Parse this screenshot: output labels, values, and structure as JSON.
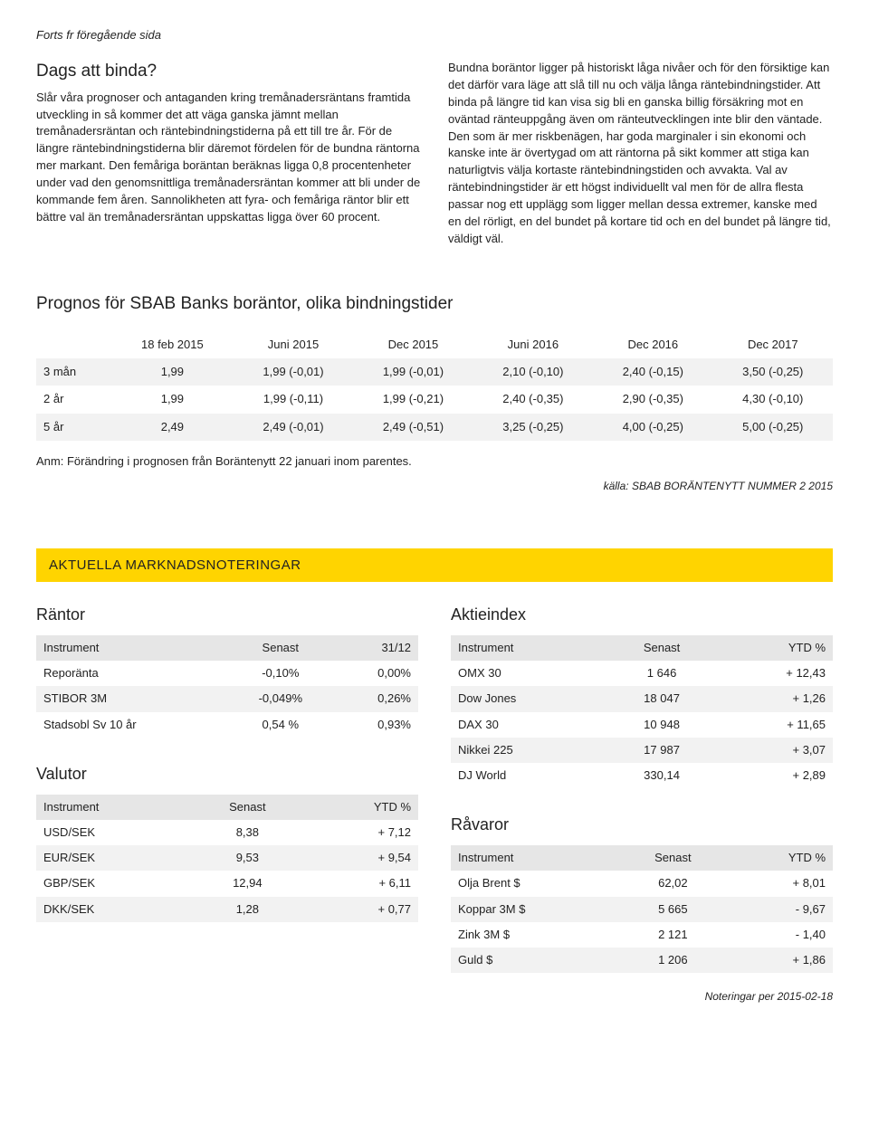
{
  "cont_note": "Forts fr föregående sida",
  "left": {
    "heading": "Dags att binda?",
    "text": "Slår våra prognoser och antaganden kring tremånadersräntans framtida utveckling in så kommer det att väga ganska jämnt mellan tremånadersräntan och räntebindningstiderna på ett till tre år. För de längre räntebindningstiderna blir däremot fördelen för de bundna räntorna mer markant. Den femåriga boräntan beräknas ligga 0,8 procentenheter under vad den genomsnittliga tremånadersräntan kommer att bli under de kommande fem åren. Sannolikheten att fyra- och femåriga räntor blir ett bättre val än tremånadersräntan uppskattas ligga över 60 procent."
  },
  "right": {
    "text": "Bundna boräntor ligger på historiskt låga nivåer och för den försiktige kan det därför vara läge att slå till nu och välja långa räntebindningstider. Att binda på längre tid kan visa sig bli en ganska billig försäkring mot en oväntad ränteuppgång även om ränteutvecklingen inte blir den väntade. Den som är mer riskbenägen, har goda marginaler i sin ekonomi och kanske inte är övertygad om att räntorna på sikt kommer att stiga kan naturligtvis välja kortaste räntebindningstiden och avvakta. Val av räntebindningstider är ett högst individuellt val men för de allra flesta passar nog ett upplägg som ligger mellan dessa extremer, kanske med en del rörligt, en del bundet på kortare tid och en del bundet på längre tid, väldigt väl."
  },
  "forecast": {
    "heading": "Prognos för SBAB Banks boräntor, olika bindningstider",
    "columns": [
      "",
      "18 feb 2015",
      "Juni 2015",
      "Dec 2015",
      "Juni 2016",
      "Dec 2016",
      "Dec 2017"
    ],
    "rows": [
      [
        "3 mån",
        "1,99",
        "1,99 (-0,01)",
        "1,99 (-0,01)",
        "2,10 (-0,10)",
        "2,40 (-0,15)",
        "3,50 (-0,25)"
      ],
      [
        "2 år",
        "1,99",
        "1,99 (-0,11)",
        "1,99 (-0,21)",
        "2,40 (-0,35)",
        "2,90 (-0,35)",
        "4,30 (-0,10)"
      ],
      [
        "5 år",
        "2,49",
        "2,49 (-0,01)",
        "2,49 (-0,51)",
        "3,25 (-0,25)",
        "4,00 (-0,25)",
        "5,00 (-0,25)"
      ]
    ],
    "note": "Anm: Förändring i prognosen från Boräntenytt 22 januari inom parentes.",
    "source": "källa: SBAB BORÄNTENYTT  NUMMER 2 2015"
  },
  "banner": "AKTUELLA MARKNADSNOTERINGAR",
  "rates": {
    "heading": "Räntor",
    "columns": [
      "Instrument",
      "Senast",
      "31/12"
    ],
    "rows": [
      [
        "Reporänta",
        "-0,10%",
        "0,00%"
      ],
      [
        "STIBOR 3M",
        "-0,049%",
        "0,26%"
      ],
      [
        "Stadsobl Sv 10 år",
        "0,54 %",
        "0,93%"
      ]
    ]
  },
  "fx": {
    "heading": "Valutor",
    "columns": [
      "Instrument",
      "Senast",
      "YTD %"
    ],
    "rows": [
      [
        "USD/SEK",
        "8,38",
        "+ 7,12"
      ],
      [
        "EUR/SEK",
        "9,53",
        "+ 9,54"
      ],
      [
        "GBP/SEK",
        "12,94",
        "+ 6,11"
      ],
      [
        "DKK/SEK",
        "1,28",
        "+ 0,77"
      ]
    ]
  },
  "equity": {
    "heading": "Aktieindex",
    "columns": [
      "Instrument",
      "Senast",
      "YTD %"
    ],
    "rows": [
      [
        "OMX 30",
        "1 646",
        "+ 12,43"
      ],
      [
        "Dow Jones",
        "18 047",
        "+ 1,26"
      ],
      [
        "DAX 30",
        "10 948",
        "+ 11,65"
      ],
      [
        "Nikkei 225",
        "17 987",
        "+ 3,07"
      ],
      [
        "DJ World",
        "330,14",
        "+ 2,89"
      ]
    ]
  },
  "commod": {
    "heading": "Råvaror",
    "columns": [
      "Instrument",
      "Senast",
      "YTD %"
    ],
    "rows": [
      [
        "Olja Brent $",
        "62,02",
        "+ 8,01"
      ],
      [
        "Koppar 3M $",
        "5 665",
        "- 9,67"
      ],
      [
        "Zink 3M $",
        "2 121",
        "- 1,40"
      ],
      [
        "Guld $",
        "1 206",
        "+ 1,86"
      ]
    ]
  },
  "footer": "Noteringar per 2015-02-18"
}
